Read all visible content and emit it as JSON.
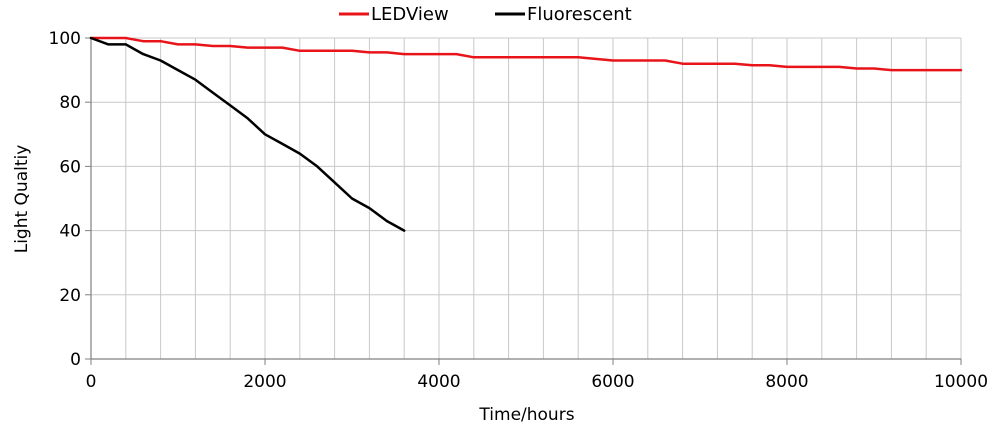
{
  "chart_data": {
    "type": "line",
    "xlabel": "Time/hours",
    "ylabel": "Light Qualtiy",
    "xlim": [
      0,
      10000
    ],
    "ylim": [
      0,
      100
    ],
    "x_ticks": [
      0,
      2000,
      4000,
      6000,
      8000,
      10000
    ],
    "y_ticks": [
      0,
      20,
      40,
      60,
      80,
      100
    ],
    "x_minor_gridlines_every": 400,
    "grid": true,
    "legend_position": "top-center",
    "series": [
      {
        "name": "LEDView",
        "color": "#e8141a",
        "points": [
          [
            0,
            100
          ],
          [
            400,
            100
          ],
          [
            600,
            99
          ],
          [
            800,
            99
          ],
          [
            1000,
            98
          ],
          [
            1200,
            98
          ],
          [
            1400,
            97.5
          ],
          [
            1600,
            97.5
          ],
          [
            1800,
            97
          ],
          [
            2000,
            97
          ],
          [
            2200,
            97
          ],
          [
            2400,
            96
          ],
          [
            2600,
            96
          ],
          [
            2800,
            96
          ],
          [
            3000,
            96
          ],
          [
            3200,
            95.5
          ],
          [
            3400,
            95.5
          ],
          [
            3600,
            95
          ],
          [
            3800,
            95
          ],
          [
            4000,
            95
          ],
          [
            4200,
            95
          ],
          [
            4400,
            94
          ],
          [
            4800,
            94
          ],
          [
            5200,
            94
          ],
          [
            5600,
            94
          ],
          [
            6000,
            93
          ],
          [
            6400,
            93
          ],
          [
            6600,
            93
          ],
          [
            6800,
            92
          ],
          [
            7000,
            92
          ],
          [
            7400,
            92
          ],
          [
            7600,
            91.5
          ],
          [
            7800,
            91.5
          ],
          [
            8000,
            91
          ],
          [
            8200,
            91
          ],
          [
            8600,
            91
          ],
          [
            8800,
            90.5
          ],
          [
            9000,
            90.5
          ],
          [
            9200,
            90
          ],
          [
            9600,
            90
          ],
          [
            10000,
            90
          ]
        ]
      },
      {
        "name": "Fluorescent",
        "color": "#000000",
        "points": [
          [
            0,
            100
          ],
          [
            200,
            98
          ],
          [
            400,
            98
          ],
          [
            600,
            95
          ],
          [
            800,
            93
          ],
          [
            1000,
            90
          ],
          [
            1200,
            87
          ],
          [
            1400,
            83
          ],
          [
            1600,
            79
          ],
          [
            1800,
            75
          ],
          [
            2000,
            70
          ],
          [
            2200,
            67
          ],
          [
            2400,
            64
          ],
          [
            2600,
            60
          ],
          [
            2800,
            55
          ],
          [
            3000,
            50
          ],
          [
            3200,
            47
          ],
          [
            3400,
            43
          ],
          [
            3600,
            40
          ]
        ]
      }
    ]
  }
}
